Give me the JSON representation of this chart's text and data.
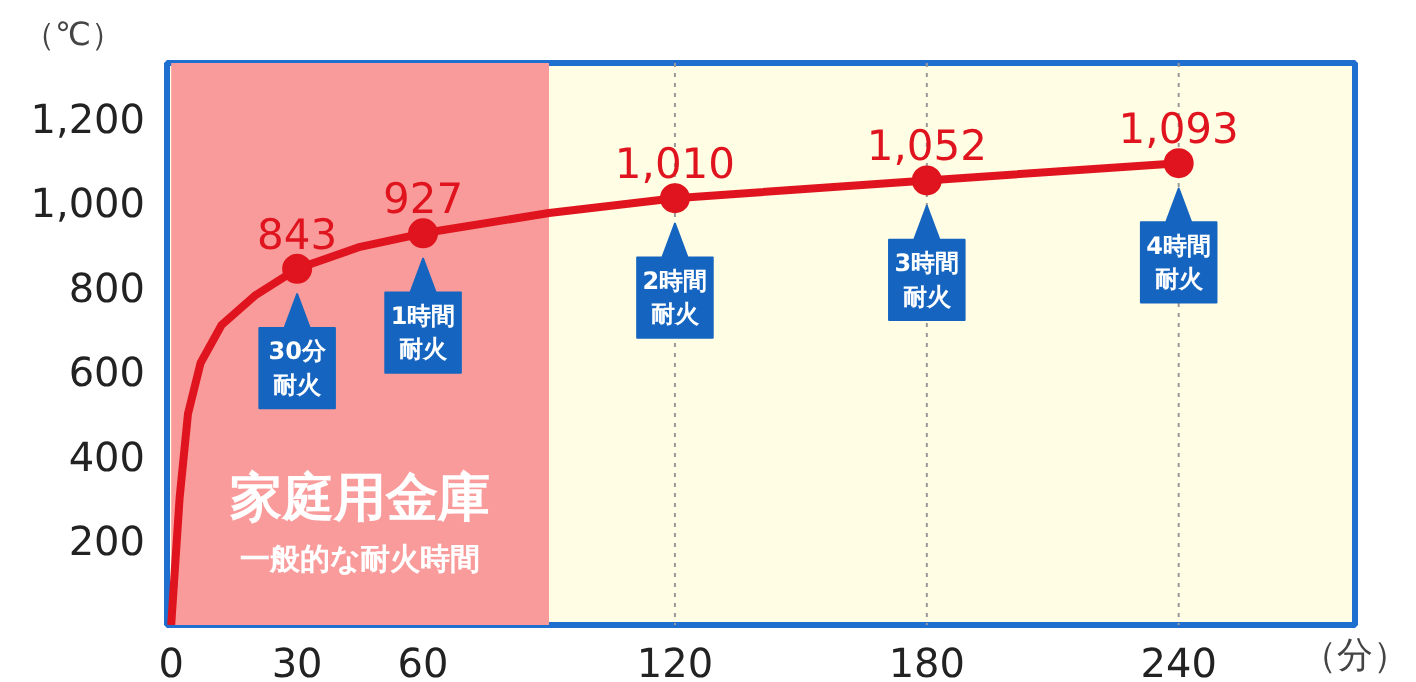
{
  "chart_data": {
    "type": "line",
    "xlabel": "（分）",
    "ylabel": "（℃）",
    "xlim": [
      -1,
      282
    ],
    "ylim": [
      0,
      1330
    ],
    "xticks": [
      0,
      30,
      60,
      120,
      180,
      240
    ],
    "yticks": [
      {
        "value": 200,
        "label": "200"
      },
      {
        "value": 400,
        "label": "400"
      },
      {
        "value": 600,
        "label": "600"
      },
      {
        "value": 800,
        "label": "800"
      },
      {
        "value": 1000,
        "label": "1,000"
      },
      {
        "value": 1200,
        "label": "1,200"
      }
    ],
    "grid": false,
    "series": [
      {
        "color": "#e0141e",
        "x": [
          0,
          2,
          4,
          7,
          12,
          20,
          30,
          45,
          60,
          90,
          120,
          180,
          240
        ],
        "values": [
          0,
          300,
          500,
          620,
          710,
          780,
          843,
          895,
          927,
          975,
          1010,
          1052,
          1093
        ]
      },
      {
        "type": "scatter",
        "marker": "circle",
        "color": "#e0141e",
        "x": [
          30,
          60,
          120,
          180,
          240
        ],
        "values": [
          843,
          927,
          1010,
          1052,
          1093
        ],
        "value_labels": [
          "843",
          "927",
          "1,010",
          "1,052",
          "1,093"
        ]
      }
    ],
    "ref_lines": [
      {
        "axis": "x",
        "value": 120,
        "line_style": "dotted",
        "color": "#999999"
      },
      {
        "axis": "x",
        "value": 180,
        "line_style": "dotted",
        "color": "#999999"
      },
      {
        "axis": "x",
        "value": 240,
        "line_style": "dotted",
        "color": "#999999"
      }
    ],
    "bands": [
      {
        "axis": "x",
        "from": 0,
        "to": 90,
        "color": "#f99b9b",
        "label": "家庭用金庫"
      }
    ],
    "annotations": [
      "一般的な耐火時間",
      {
        "text": "30分耐火",
        "x": 30,
        "y": 843
      },
      {
        "text": "1時間耐火",
        "x": 60,
        "y": 927
      },
      {
        "text": "2時間耐火",
        "x": 120,
        "y": 1010
      },
      {
        "text": "3時間耐火",
        "x": 180,
        "y": 1052
      },
      {
        "text": "4時間耐火",
        "x": 240,
        "y": 1093
      }
    ]
  }
}
